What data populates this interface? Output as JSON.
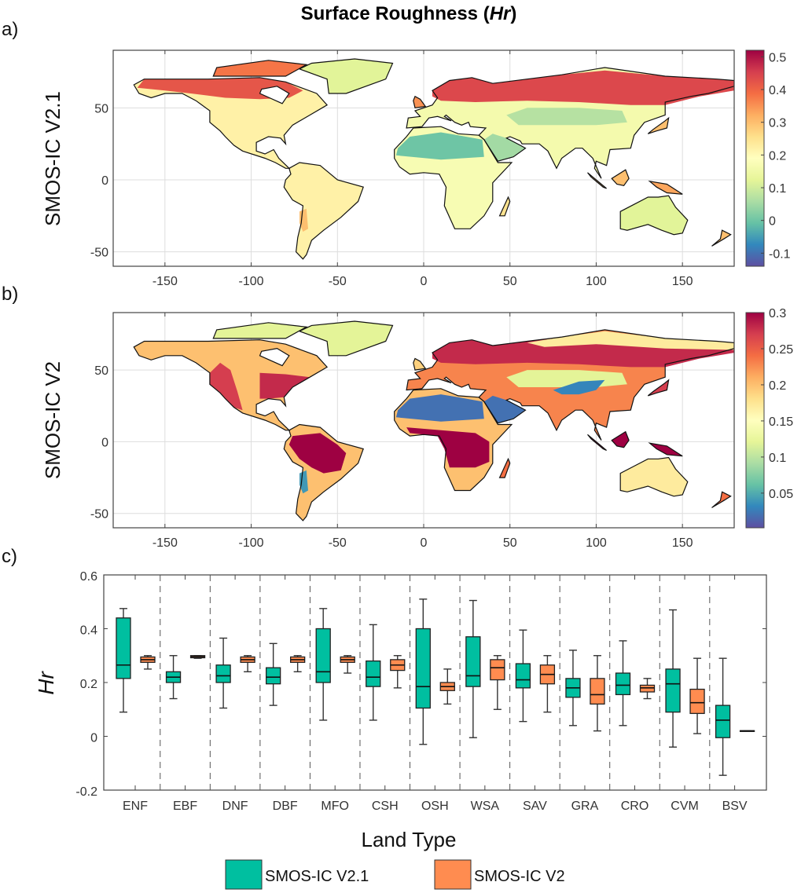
{
  "title": {
    "main": "Surface Roughness (",
    "italic": "Hr",
    "close": ")"
  },
  "panels": {
    "a": {
      "label": "a)",
      "ylabel": "SMOS-IC V2.1"
    },
    "b": {
      "label": "b)",
      "ylabel": "SMOS-IC V2"
    },
    "c": {
      "label": "c)"
    }
  },
  "chart_data": [
    {
      "type": "heatmap",
      "id": "map-a",
      "title": "Surface Roughness (Hr) - SMOS-IC V2.1",
      "ylabel": "SMOS-IC V2.1",
      "xlim": [
        -180,
        180
      ],
      "ylim": [
        -60,
        90
      ],
      "xticks": [
        "-150",
        "-100",
        "-50",
        "0",
        "50",
        "100",
        "150"
      ],
      "xtick_values": [
        -150,
        -100,
        -50,
        0,
        50,
        100,
        150
      ],
      "yticks": [
        "50",
        "0",
        "-50"
      ],
      "ytick_values": [
        50,
        0,
        -50
      ],
      "grid": true,
      "colorbar": {
        "range": [
          -0.14,
          0.52
        ],
        "ticks": [
          "0.5",
          "0.4",
          "0.3",
          "0.2",
          "0.1",
          "0",
          "-0.1"
        ],
        "tick_values": [
          0.5,
          0.4,
          0.3,
          0.2,
          0.1,
          0,
          -0.1
        ],
        "colormap": "spectral-reversed"
      },
      "regions": {
        "north_america": 0.22,
        "na_boreal": 0.42,
        "canada_islands": 0.38,
        "greenland": 0.12,
        "south_america": 0.22,
        "andes_south": 0.3,
        "africa": 0.17,
        "sahara": 0.0,
        "eurasia": 0.16,
        "eurasia_boreal": 0.44,
        "central_asia": 0.07,
        "arabia": 0.05,
        "australia": 0.12,
        "borneo": 0.3,
        "sumatra": 0.3,
        "new_guinea": 0.33,
        "japan": 0.3,
        "new_zealand": 0.3,
        "madagascar": 0.25,
        "uk": 0.35
      }
    },
    {
      "type": "heatmap",
      "id": "map-b",
      "title": "Surface Roughness (Hr) - SMOS-IC V2",
      "ylabel": "SMOS-IC V2",
      "xlim": [
        -180,
        180
      ],
      "ylim": [
        -60,
        90
      ],
      "xticks": [
        "-150",
        "-100",
        "-50",
        "0",
        "50",
        "100",
        "150"
      ],
      "xtick_values": [
        -150,
        -100,
        -50,
        0,
        50,
        100,
        150
      ],
      "yticks": [
        "50",
        "0",
        "-50"
      ],
      "ytick_values": [
        50,
        0,
        -50
      ],
      "grid": true,
      "colorbar": {
        "range": [
          0.002,
          0.3
        ],
        "ticks": [
          "0.3",
          "0.25",
          "0.2",
          "0.15",
          "0.1",
          "0.05"
        ],
        "tick_values": [
          0.3,
          0.25,
          0.2,
          0.15,
          0.1,
          0.05
        ],
        "colormap": "spectral-reversed"
      },
      "regions": {
        "north_america": 0.2,
        "na_east": 0.28,
        "na_west": 0.27,
        "canada_islands": 0.12,
        "greenland": 0.12,
        "south_america": 0.2,
        "amazon": 0.3,
        "andes_south": 0.04,
        "africa": 0.2,
        "sahara": 0.02,
        "central_africa": 0.3,
        "eurasia": 0.23,
        "eurasia_boreal": 0.28,
        "siberia_north": 0.17,
        "central_asia": 0.12,
        "tibet": 0.03,
        "arabia": 0.02,
        "australia": 0.17,
        "borneo": 0.3,
        "sumatra": 0.3,
        "new_guinea": 0.3,
        "japan": 0.27,
        "new_zealand": 0.24,
        "madagascar": 0.24,
        "uk": 0.19
      }
    },
    {
      "type": "box",
      "id": "boxplot-c",
      "xlabel": "Land Type",
      "ylabel": "Hr",
      "ylim": [
        -0.2,
        0.6
      ],
      "yticks": [
        "0.6",
        "0.4",
        "0.2",
        "0",
        "-0.2"
      ],
      "ytick_values": [
        0.6,
        0.4,
        0.2,
        0,
        -0.2
      ],
      "categories": [
        "ENF",
        "EBF",
        "DNF",
        "DBF",
        "MFO",
        "CSH",
        "OSH",
        "WSA",
        "SAV",
        "GRA",
        "CRO",
        "CVM",
        "BSV"
      ],
      "series": [
        {
          "name": "SMOS-IC V2.1",
          "color": "#00BFA0",
          "whisker_low": [
            0.09,
            0.14,
            0.105,
            0.115,
            0.06,
            0.06,
            -0.03,
            -0.005,
            0.055,
            0.04,
            0.04,
            -0.04,
            -0.145
          ],
          "q1": [
            0.215,
            0.2,
            0.2,
            0.195,
            0.2,
            0.185,
            0.105,
            0.185,
            0.18,
            0.145,
            0.155,
            0.09,
            -0.005
          ],
          "median": [
            0.265,
            0.22,
            0.225,
            0.22,
            0.24,
            0.22,
            0.185,
            0.225,
            0.21,
            0.18,
            0.19,
            0.195,
            0.06
          ],
          "q3": [
            0.44,
            0.24,
            0.265,
            0.255,
            0.4,
            0.28,
            0.4,
            0.37,
            0.27,
            0.215,
            0.235,
            0.25,
            0.115
          ],
          "whisker_high": [
            0.475,
            0.3,
            0.365,
            0.345,
            0.475,
            0.415,
            0.51,
            0.505,
            0.395,
            0.32,
            0.355,
            0.47,
            0.29
          ]
        },
        {
          "name": "SMOS-IC V2",
          "color": "#FF8C50",
          "whisker_low": [
            0.25,
            0.29,
            0.24,
            0.24,
            0.235,
            0.18,
            0.12,
            0.1,
            0.09,
            0.02,
            0.14,
            0.01,
            0.02
          ],
          "q1": [
            0.275,
            0.292,
            0.275,
            0.275,
            0.275,
            0.245,
            0.17,
            0.21,
            0.195,
            0.12,
            0.165,
            0.085,
            0.019
          ],
          "median": [
            0.285,
            0.296,
            0.285,
            0.285,
            0.285,
            0.265,
            0.185,
            0.255,
            0.23,
            0.155,
            0.18,
            0.125,
            0.02
          ],
          "q3": [
            0.295,
            0.3,
            0.295,
            0.295,
            0.295,
            0.285,
            0.2,
            0.285,
            0.265,
            0.215,
            0.19,
            0.175,
            0.021
          ],
          "whisker_high": [
            0.3,
            0.3,
            0.3,
            0.3,
            0.3,
            0.3,
            0.25,
            0.3,
            0.3,
            0.3,
            0.215,
            0.29,
            0.02
          ]
        }
      ],
      "legend": {
        "placement": "bottom",
        "items": [
          "SMOS-IC V2.1",
          "SMOS-IC V2"
        ]
      }
    }
  ]
}
